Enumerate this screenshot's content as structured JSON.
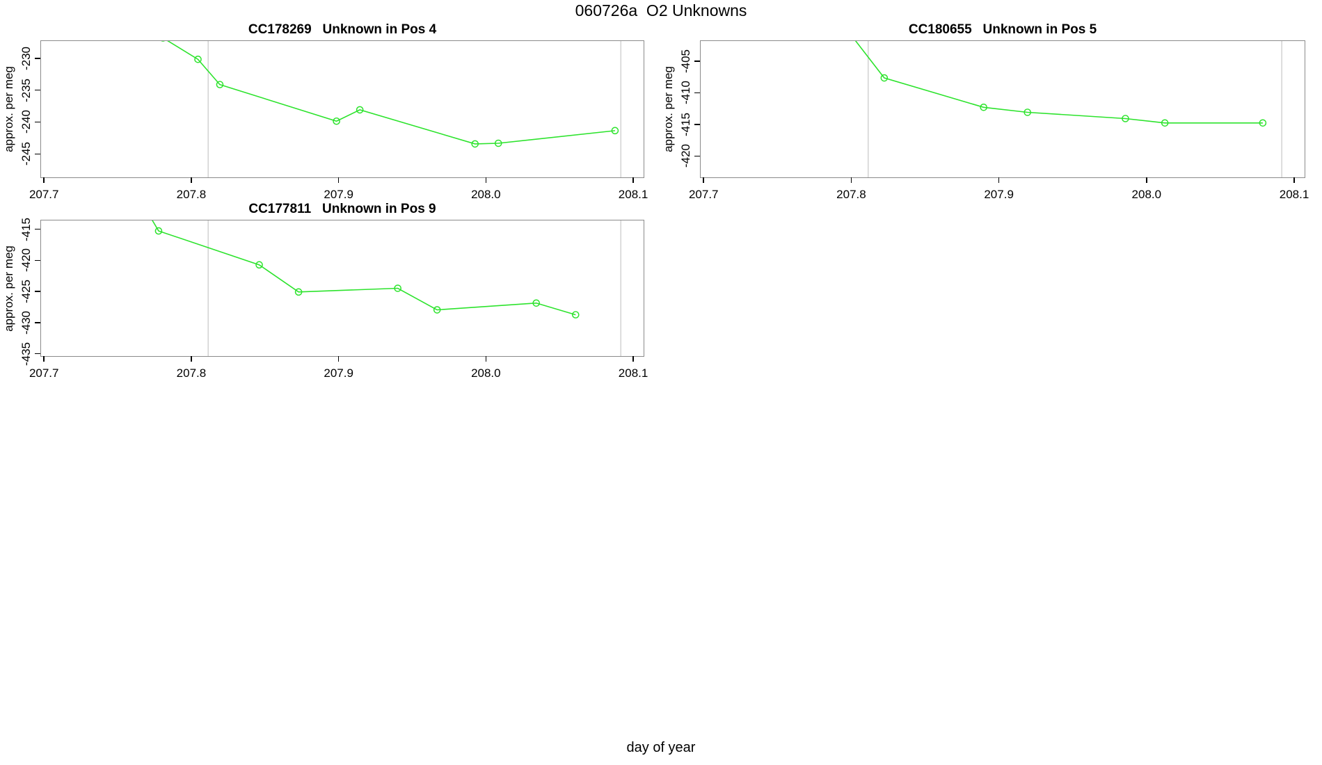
{
  "page": {
    "title": "060726a  O2 Unknowns",
    "xlabel": "day of year",
    "line_color": "#2ce32c",
    "vline_color": "#d2d2d2",
    "frame_color": "#8a8a8a",
    "text_color": "#000000"
  },
  "chart_data": [
    {
      "type": "line",
      "title": "CC178269   Unknown in Pos 4",
      "ylabel": "approx. per meg",
      "xlim": [
        207.698,
        208.108
      ],
      "ylim": [
        -248.9,
        -227.3
      ],
      "x_ticks": [
        207.7,
        207.8,
        207.9,
        208.0,
        208.1
      ],
      "x_tick_labels": [
        "207.7",
        "207.8",
        "207.9",
        "208.0",
        "208.1"
      ],
      "y_ticks": [
        -230,
        -235,
        -240,
        -245
      ],
      "y_tick_labels": [
        "-230",
        "-235",
        "-240",
        "-245"
      ],
      "vlines": [
        207.811,
        208.094
      ],
      "x": [
        207.78,
        207.804,
        207.819,
        207.899,
        207.915,
        207.994,
        208.01,
        208.09
      ],
      "y": [
        -226.8,
        -230.2,
        -234.2,
        -240.0,
        -238.2,
        -243.6,
        -243.5,
        -241.5
      ],
      "legend": null,
      "grid": false
    },
    {
      "type": "line",
      "title": "CC180655   Unknown in Pos 5",
      "ylabel": "approx. per meg",
      "xlim": [
        207.698,
        208.108
      ],
      "ylim": [
        -423.6,
        -401.8
      ],
      "x_ticks": [
        207.7,
        207.8,
        207.9,
        208.0,
        208.1
      ],
      "x_tick_labels": [
        "207.7",
        "207.8",
        "207.9",
        "208.0",
        "208.1"
      ],
      "y_ticks": [
        -405,
        -410,
        -415,
        -420
      ],
      "y_tick_labels": [
        "-405",
        "-410",
        "-415",
        "-420"
      ],
      "vlines": [
        207.811,
        208.094
      ],
      "x": [
        207.78,
        207.822,
        207.89,
        207.92,
        207.987,
        208.014,
        208.081
      ],
      "y": [
        -395.0,
        -407.7,
        -412.4,
        -413.2,
        -414.2,
        -414.9,
        -414.9
      ],
      "legend": null,
      "grid": false
    },
    {
      "type": "line",
      "title": "CC177811   Unknown in Pos 9",
      "ylabel": "approx. per meg",
      "xlim": [
        207.698,
        208.108
      ],
      "ylim": [
        -435.6,
        -413.6
      ],
      "x_ticks": [
        207.7,
        207.8,
        207.9,
        208.0,
        208.1
      ],
      "x_tick_labels": [
        "207.7",
        "207.8",
        "207.9",
        "208.0",
        "208.1"
      ],
      "y_ticks": [
        -415,
        -420,
        -425,
        -430,
        -435
      ],
      "y_tick_labels": [
        "-415",
        "-420",
        "-425",
        "-430",
        "-435"
      ],
      "vlines": [
        207.811,
        208.094
      ],
      "x": [
        207.77,
        207.777,
        207.846,
        207.873,
        207.941,
        207.968,
        208.036,
        208.063
      ],
      "y": [
        -412.5,
        -415.3,
        -420.8,
        -425.2,
        -424.6,
        -428.1,
        -427.0,
        -428.9
      ],
      "legend": null,
      "grid": false
    }
  ]
}
